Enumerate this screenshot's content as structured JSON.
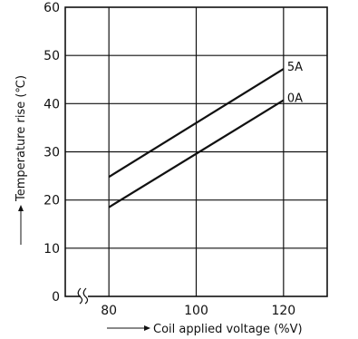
{
  "chart_data": {
    "type": "line",
    "title": "",
    "xlabel": "Coil applied voltage (%V)",
    "ylabel": "Temperature rise (℃)",
    "x_ticks": [
      80,
      100,
      120
    ],
    "y_ticks": [
      0,
      10,
      20,
      30,
      40,
      50,
      60
    ],
    "xlim": [
      70,
      130
    ],
    "ylim": [
      0,
      60
    ],
    "axis_break": "x",
    "grid": true,
    "legend": "inline-right",
    "series": [
      {
        "name": "5A",
        "x": [
          80,
          120
        ],
        "values": [
          24.8,
          47.2
        ]
      },
      {
        "name": "0A",
        "x": [
          80,
          120
        ],
        "values": [
          18.5,
          40.7
        ]
      }
    ]
  }
}
